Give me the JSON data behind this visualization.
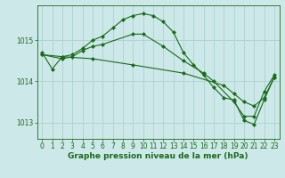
{
  "line1": {
    "x": [
      0,
      1,
      2,
      3,
      4,
      5,
      6,
      7,
      8,
      9,
      10,
      11,
      12,
      13,
      14,
      15,
      16,
      17,
      18,
      19,
      20,
      21,
      22,
      23
    ],
    "y": [
      1014.7,
      1014.3,
      1014.6,
      1014.65,
      1014.8,
      1015.0,
      1015.1,
      1015.3,
      1015.5,
      1015.6,
      1015.65,
      1015.6,
      1015.45,
      1015.2,
      1014.7,
      1014.4,
      1014.15,
      1013.85,
      1013.6,
      1013.55,
      1013.05,
      1012.95,
      1013.55,
      1014.1
    ]
  },
  "line2": {
    "x": [
      0,
      2,
      3,
      4,
      5,
      6,
      9,
      10,
      12,
      14,
      16,
      17,
      19,
      20,
      21,
      22,
      23
    ],
    "y": [
      1014.65,
      1014.55,
      1014.6,
      1014.75,
      1014.85,
      1014.9,
      1015.15,
      1015.15,
      1014.85,
      1014.5,
      1014.2,
      1014.0,
      1013.5,
      1013.15,
      1013.15,
      1013.75,
      1014.15
    ]
  },
  "line3": {
    "x": [
      0,
      2,
      5,
      9,
      14,
      18,
      19,
      20,
      21,
      22,
      23
    ],
    "y": [
      1014.65,
      1014.6,
      1014.55,
      1014.4,
      1014.2,
      1013.9,
      1013.7,
      1013.5,
      1013.4,
      1013.6,
      1014.1
    ]
  },
  "bg_color": "#cce8e8",
  "grid_color": "#aacccc",
  "line_color": "#1a6b1a",
  "marker": "D",
  "marker_size": 2,
  "linewidth": 0.8,
  "xlim": [
    -0.5,
    23.5
  ],
  "ylim": [
    1012.6,
    1015.85
  ],
  "yticks": [
    1013,
    1014,
    1015
  ],
  "xticks": [
    0,
    1,
    2,
    3,
    4,
    5,
    6,
    7,
    8,
    9,
    10,
    11,
    12,
    13,
    14,
    15,
    16,
    17,
    18,
    19,
    20,
    21,
    22,
    23
  ],
  "xlabel": "Graphe pression niveau de la mer (hPa)",
  "xlabel_fontsize": 6.5,
  "tick_fontsize": 5.5
}
